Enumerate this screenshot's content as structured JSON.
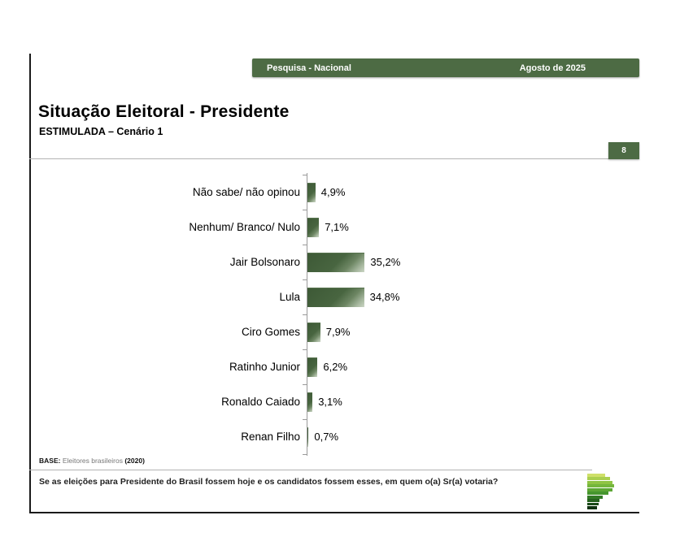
{
  "header": {
    "left_label": "Pesquisa - Nacional",
    "right_label": "Agosto de 2025",
    "bar_color": "#4d6b44"
  },
  "title": "Situação Eleitoral - Presidente",
  "subtitle": "ESTIMULADA – Cenário 1",
  "page_number": "8",
  "chart_data": {
    "type": "bar",
    "orientation": "horizontal",
    "title": "Situação Eleitoral - Presidente — ESTIMULADA – Cenário 1",
    "categories": [
      "Não sabe/ não opinou",
      "Nenhum/ Branco/ Nulo",
      "Jair Bolsonaro",
      "Lula",
      "Ciro Gomes",
      "Ratinho Junior",
      "Ronaldo Caiado",
      "Renan Filho"
    ],
    "values": [
      4.9,
      7.1,
      35.2,
      34.8,
      7.9,
      6.2,
      3.1,
      0.7
    ],
    "value_labels": [
      "4,9%",
      "7,1%",
      "35,2%",
      "34,8%",
      "7,9%",
      "6,2%",
      "3,1%",
      "0,7%"
    ],
    "bar_color": "#44613c",
    "xlabel": "",
    "ylabel": "",
    "xlim": [
      0,
      100
    ],
    "grid": false,
    "legend": false
  },
  "footer": {
    "base_prefix": "BASE:",
    "base_text": " Eleitores brasileiros ",
    "base_year": "(2020)",
    "question": "Se as eleições para Presidente do Brasil fossem hoje e os candidatos fossem esses, em quem o(a) Sr(a) votaria?"
  },
  "logo": {
    "bars": [
      {
        "w": 22,
        "color": "#cfe06a"
      },
      {
        "w": 28,
        "color": "#aacf4f"
      },
      {
        "w": 31,
        "color": "#8fc444"
      },
      {
        "w": 33,
        "color": "#74b63c"
      },
      {
        "w": 31,
        "color": "#5ca635"
      },
      {
        "w": 26,
        "color": "#46962e"
      },
      {
        "w": 19,
        "color": "#337a26"
      },
      {
        "w": 15,
        "color": "#26621f"
      },
      {
        "w": 14,
        "color": "#1a4a18"
      },
      {
        "w": 12,
        "color": "#0f3110"
      }
    ]
  }
}
